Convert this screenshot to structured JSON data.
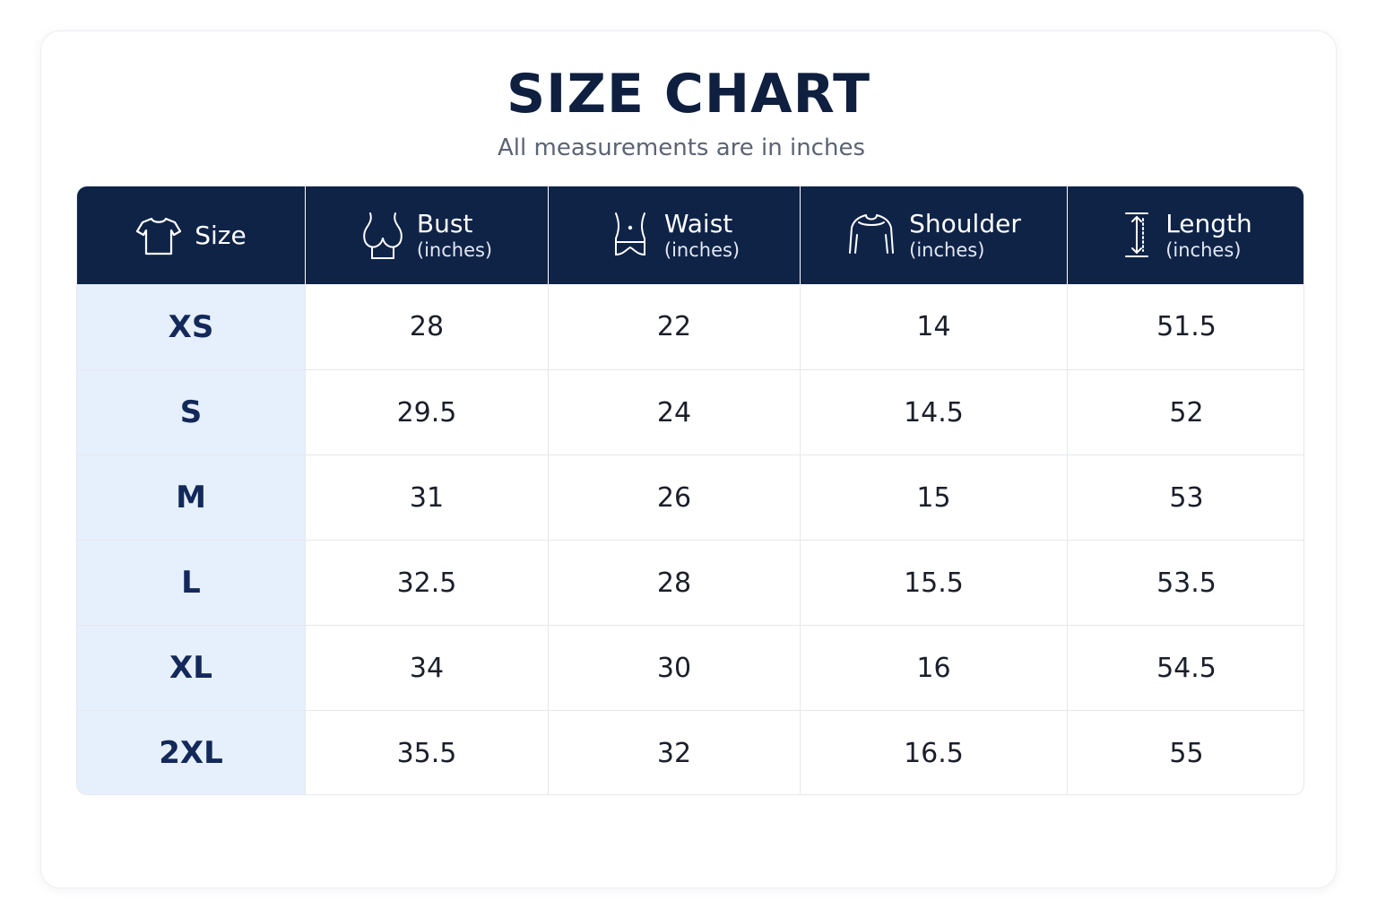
{
  "title": "SIZE CHART",
  "subtitle": "All measurements are in inches",
  "table": {
    "columns": [
      {
        "label": "Size",
        "unit": "",
        "icon": "tshirt-icon"
      },
      {
        "label": "Bust",
        "unit": "(inches)",
        "icon": "bust-icon"
      },
      {
        "label": "Waist",
        "unit": "(inches)",
        "icon": "waist-icon"
      },
      {
        "label": "Shoulder",
        "unit": "(inches)",
        "icon": "shoulder-icon"
      },
      {
        "label": "Length",
        "unit": "(inches)",
        "icon": "length-icon"
      }
    ],
    "rows": [
      [
        "XS",
        "28",
        "22",
        "14",
        "51.5"
      ],
      [
        "S",
        "29.5",
        "24",
        "14.5",
        "52"
      ],
      [
        "M",
        "31",
        "26",
        "15",
        "53"
      ],
      [
        "L",
        "32.5",
        "28",
        "15.5",
        "53.5"
      ],
      [
        "XL",
        "34",
        "30",
        "16",
        "54.5"
      ],
      [
        "2XL",
        "35.5",
        "32",
        "16.5",
        "55"
      ]
    ]
  },
  "colors": {
    "header_bg": "#0f2347",
    "size_column_bg": "#e6effc",
    "title": "#0e1f40"
  }
}
